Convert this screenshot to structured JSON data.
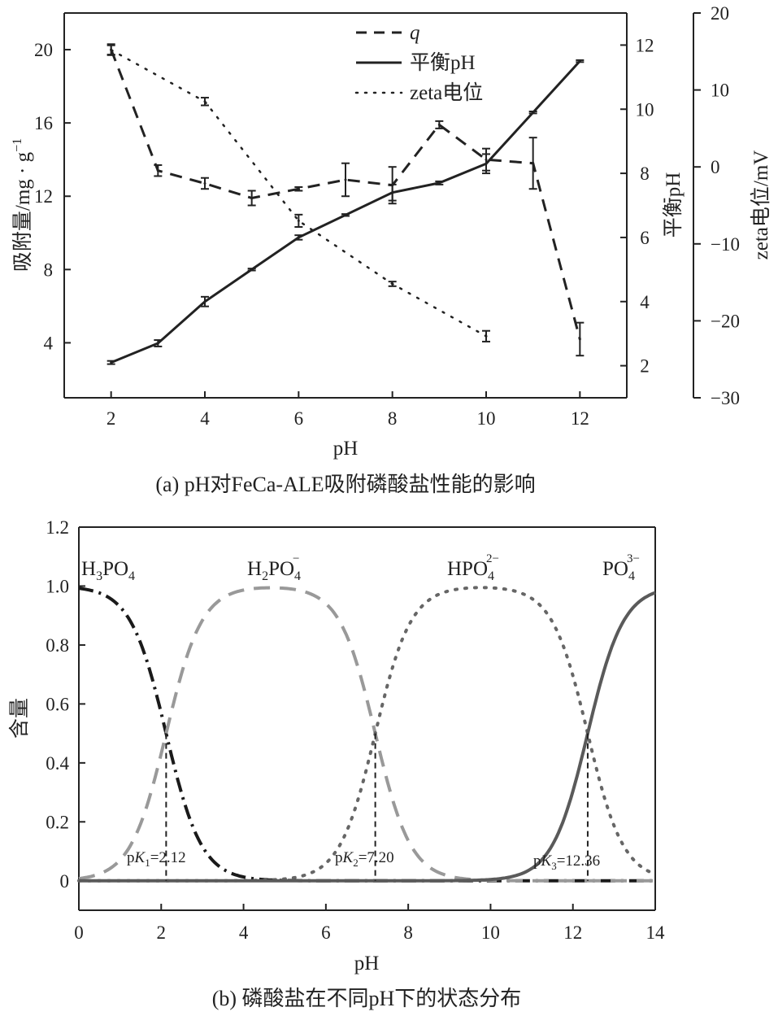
{
  "chart_data": [
    {
      "type": "line",
      "caption": "(a) pH对FeCa-ALE吸附磷酸盐性能的影响",
      "xlabel": "pH",
      "ylabel": "吸附量/mg · g",
      "ylabel_sup": "−1",
      "ylabel_right1": "平衡pH",
      "ylabel_right2": "zeta电位/mV",
      "xlim": [
        1,
        13
      ],
      "ylim": [
        1,
        22
      ],
      "ylim_right1": [
        1,
        13
      ],
      "ylim_right2": [
        -30,
        20
      ],
      "xticks": [
        "2",
        "4",
        "6",
        "8",
        "10",
        "12"
      ],
      "yticks": [
        "4",
        "8",
        "12",
        "16",
        "20"
      ],
      "yticks_right1": [
        "2",
        "4",
        "6",
        "8",
        "10",
        "12"
      ],
      "yticks_right2": [
        "−30",
        "−20",
        "−10",
        "0",
        "10",
        "20"
      ],
      "legend_entries": [
        "q",
        "平衡pH",
        "zeta电位"
      ],
      "series": [
        {
          "name": "q",
          "axis": "left",
          "style": "dashed",
          "x": [
            2,
            3,
            4,
            5,
            6,
            7,
            8,
            9,
            10,
            11,
            12
          ],
          "y": [
            20.0,
            13.4,
            12.7,
            11.9,
            12.4,
            12.9,
            12.6,
            15.9,
            14.0,
            13.8,
            4.2
          ],
          "err": [
            0.3,
            0.3,
            0.3,
            0.4,
            0.1,
            0.9,
            1.0,
            0.2,
            0.6,
            1.4,
            0.9
          ]
        },
        {
          "name": "平衡pH",
          "axis": "right1",
          "style": "solid",
          "x": [
            2,
            3,
            4,
            5,
            6,
            7,
            8,
            9,
            10,
            11,
            12
          ],
          "y": [
            2.1,
            2.7,
            4.0,
            5.0,
            6.0,
            6.7,
            7.4,
            7.7,
            8.3,
            9.9,
            11.5
          ],
          "err": [
            0.05,
            0.1,
            0.15,
            0.03,
            0.07,
            0.03,
            0.25,
            0.05,
            0.3,
            0.03,
            0.03
          ]
        },
        {
          "name": "zeta电位",
          "axis": "right2",
          "style": "dotted",
          "x": [
            2,
            4,
            6,
            8,
            10
          ],
          "y": [
            15.2,
            8.5,
            -7.0,
            -15.2,
            -22.0
          ],
          "err": [
            0.6,
            0.5,
            0.8,
            0.3,
            0.7
          ]
        }
      ]
    },
    {
      "type": "line",
      "caption": "(b) 磷酸盐在不同pH下的状态分布",
      "xlabel": "pH",
      "ylabel": "含量",
      "xlim": [
        0,
        14
      ],
      "ylim": [
        -0.1,
        1.2
      ],
      "xticks": [
        "0",
        "2",
        "4",
        "6",
        "8",
        "10",
        "12",
        "14"
      ],
      "yticks": [
        "0",
        "0.2",
        "0.4",
        "0.6",
        "0.8",
        "1.0",
        "1.2"
      ],
      "pKa": [
        2.12,
        7.2,
        12.36
      ],
      "species_labels": [
        {
          "base": "H",
          "sub1": "3",
          "mid": "PO",
          "sub2": "4",
          "sup": ""
        },
        {
          "base": "H",
          "sub1": "2",
          "mid": "PO",
          "sub2": "4",
          "sup": "−"
        },
        {
          "base": "HPO",
          "sub1": "",
          "mid": "",
          "sub2": "4",
          "sup": "2−"
        },
        {
          "base": "PO",
          "sub1": "",
          "mid": "",
          "sub2": "4",
          "sup": "3−"
        }
      ],
      "pk_labels": [
        {
          "pre": "p",
          "K": "K",
          "sub": "1",
          "post": "=2.12"
        },
        {
          "pre": "p",
          "K": "K",
          "sub": "2",
          "post": "=7.20"
        },
        {
          "pre": "p",
          "K": "K",
          "sub": "3",
          "post": "=12.36"
        }
      ],
      "series": [
        {
          "name": "H3PO4",
          "style": "dashdot",
          "color": "#1a1a1a"
        },
        {
          "name": "H2PO4-",
          "style": "dashed",
          "color": "#999999"
        },
        {
          "name": "HPO4 2-",
          "style": "dotted",
          "color": "#666666"
        },
        {
          "name": "PO4 3-",
          "style": "solid",
          "color": "#5a5a5a"
        }
      ]
    }
  ]
}
